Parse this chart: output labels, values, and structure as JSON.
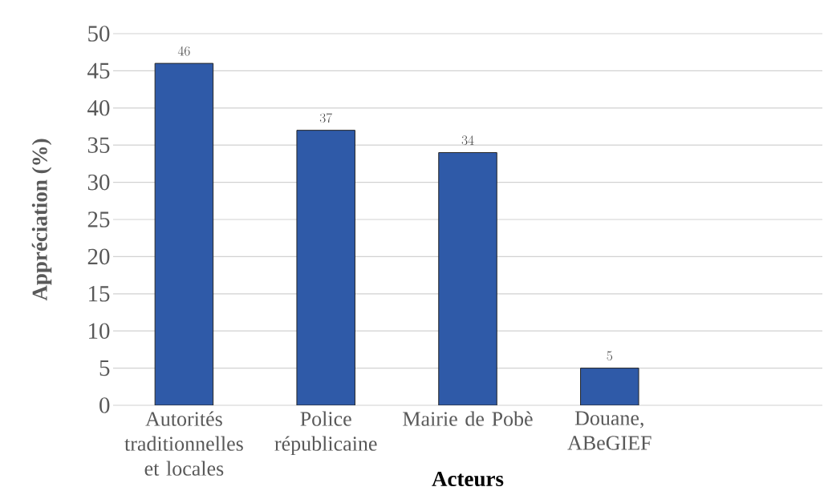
{
  "chart_data": {
    "type": "bar",
    "xlabel": "Acteurs",
    "ylabel": "Appréciation (%)",
    "categories": [
      "Autorités traditionnelles et locales",
      "Police républicaine",
      "Mairie de Pobè",
      "Douane, ABeGIEF",
      null
    ],
    "values": [
      46,
      37,
      34,
      5,
      null
    ],
    "color": "#2f5aa8",
    "ylim": [
      0,
      50
    ],
    "yticks": [
      0,
      5,
      10,
      15,
      20,
      25,
      30,
      35,
      40,
      45,
      50
    ],
    "grid": "y",
    "data_labels": true
  }
}
